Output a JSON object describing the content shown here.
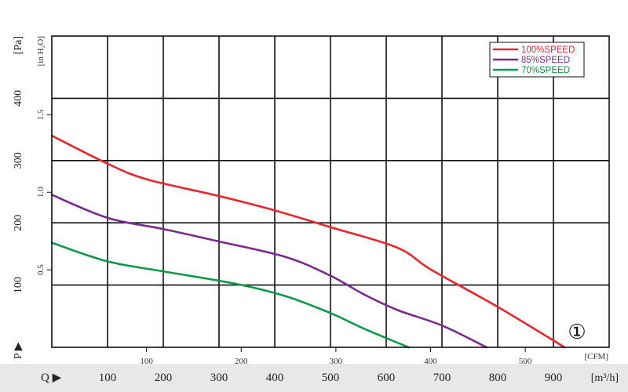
{
  "chart_data": {
    "type": "line",
    "x_axis_m3h": {
      "label": "Q ▶",
      "unit": "[m³/h]",
      "ticks": [
        100,
        200,
        300,
        400,
        500,
        600,
        700,
        800,
        900
      ],
      "range": [
        0,
        1000
      ]
    },
    "x_axis_cfm": {
      "unit": "[CFM]",
      "ticks": [
        100,
        200,
        300,
        400,
        500
      ]
    },
    "y_axis_pa": {
      "label": "P ▶",
      "unit": "[Pa]",
      "ticks": [
        100,
        200,
        300,
        400
      ],
      "range": [
        0,
        500
      ]
    },
    "y_axis_inh2o": {
      "unit": "[in H₂O]",
      "ticks": [
        "0.5",
        "1.0",
        "1.5"
      ]
    },
    "grid": true,
    "legend": "top-right",
    "curve_marker": "①",
    "series": [
      {
        "name": "100%SPEED",
        "color": "#e8262d",
        "x": [
          0,
          100,
          170,
          300,
          400,
          500,
          620,
          680,
          800,
          920
        ],
        "y": [
          340,
          295,
          270,
          243,
          220,
          193,
          160,
          125,
          65,
          0
        ]
      },
      {
        "name": "85%SPEED",
        "color": "#7a2a8f",
        "x": [
          0,
          100,
          200,
          300,
          420,
          500,
          560,
          620,
          700,
          780
        ],
        "y": [
          245,
          208,
          190,
          170,
          145,
          115,
          85,
          60,
          35,
          0
        ]
      },
      {
        "name": "70%SPEED",
        "color": "#0a9a48",
        "x": [
          0,
          100,
          200,
          330,
          420,
          500,
          560,
          640
        ],
        "y": [
          168,
          138,
          122,
          102,
          82,
          55,
          30,
          0
        ]
      }
    ]
  }
}
